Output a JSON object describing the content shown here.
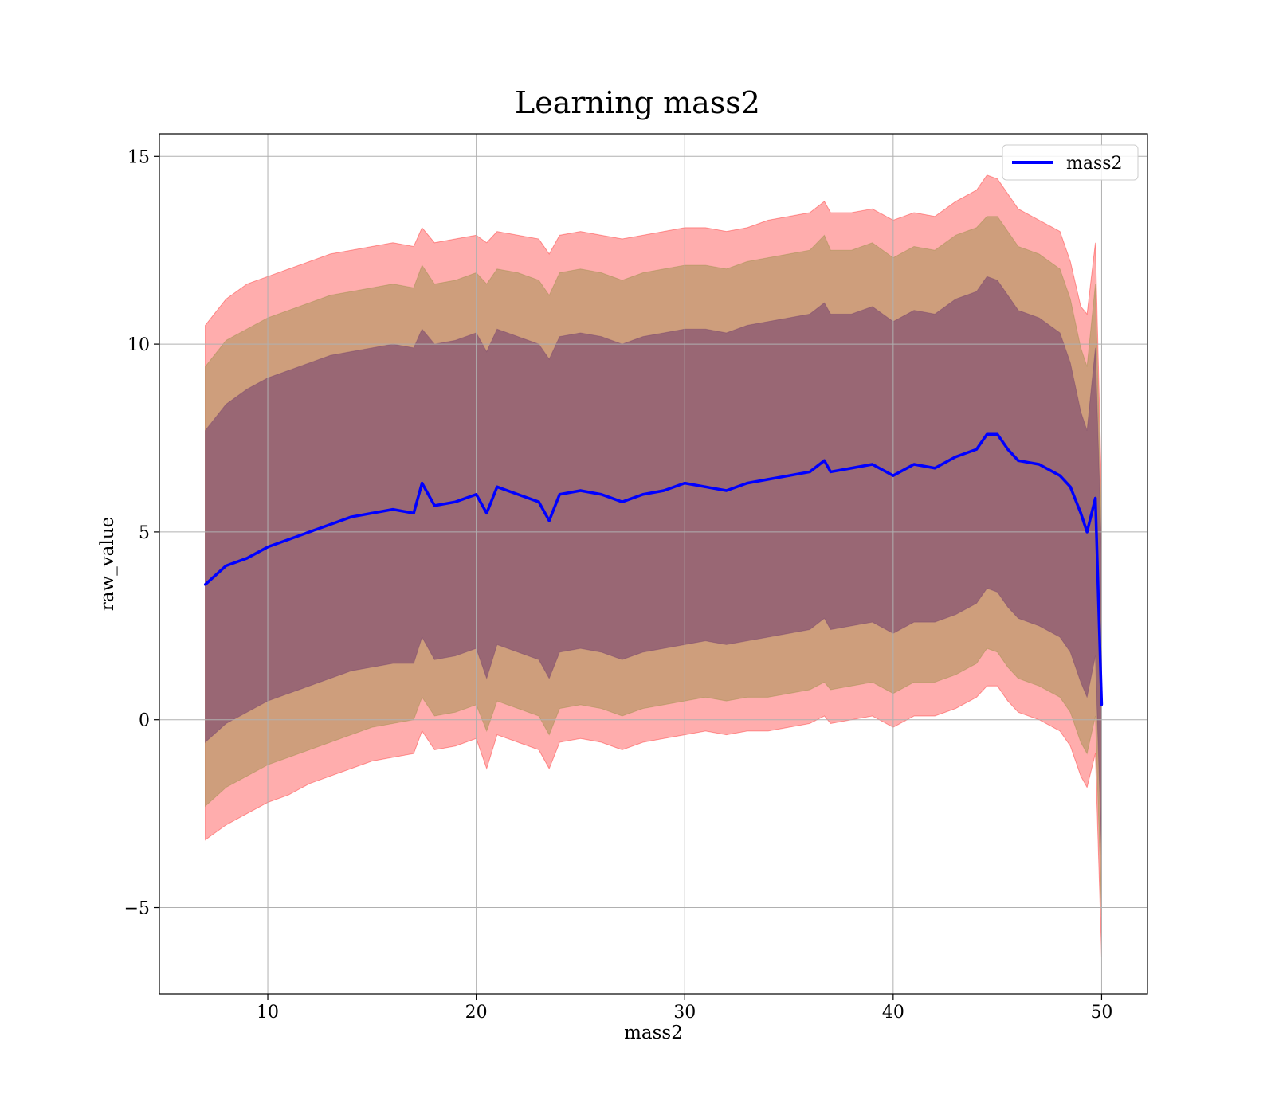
{
  "chart_data": {
    "type": "line",
    "title": "Learning mass2",
    "xlabel": "mass2",
    "ylabel": "raw_value",
    "xlim": [
      4.8,
      52.2
    ],
    "ylim": [
      -7.3,
      15.6
    ],
    "xticks": [
      10,
      20,
      30,
      40,
      50
    ],
    "yticks": [
      -5,
      0,
      5,
      10,
      15
    ],
    "xtick_labels": [
      "10",
      "20",
      "30",
      "40",
      "50"
    ],
    "ytick_labels": [
      "−5",
      "0",
      "5",
      "10",
      "15"
    ],
    "grid": true,
    "legend": {
      "position": "top-right",
      "entries": [
        "mass2"
      ]
    },
    "colors": {
      "mean_line": "#0000ff",
      "band_outer": "#ff0000",
      "band_middle": "#8b8b3a",
      "band_inner": "#6e3a6e",
      "grid": "#b0b0b0"
    },
    "series": [
      {
        "name": "mass2",
        "x": [
          7,
          8,
          9,
          10,
          11,
          12,
          13,
          14,
          15,
          16,
          17,
          17.4,
          18,
          19,
          20,
          20.5,
          21,
          22,
          23,
          23.5,
          24,
          25,
          26,
          27,
          28,
          29,
          30,
          31,
          32,
          33,
          34,
          35,
          36,
          36.7,
          37,
          38,
          39,
          40,
          41,
          42,
          43,
          44,
          44.5,
          45,
          45.5,
          46,
          47,
          48,
          48.5,
          49,
          49.3,
          49.7,
          50
        ],
        "y": [
          3.6,
          4.1,
          4.3,
          4.6,
          4.8,
          5.0,
          5.2,
          5.4,
          5.5,
          5.6,
          5.5,
          6.3,
          5.7,
          5.8,
          6.0,
          5.5,
          6.2,
          6.0,
          5.8,
          5.3,
          6.0,
          6.1,
          6.0,
          5.8,
          6.0,
          6.1,
          6.3,
          6.2,
          6.1,
          6.3,
          6.4,
          6.5,
          6.6,
          6.9,
          6.6,
          6.7,
          6.8,
          6.5,
          6.8,
          6.7,
          7.0,
          7.2,
          7.6,
          7.6,
          7.2,
          6.9,
          6.8,
          6.5,
          6.2,
          5.5,
          5.0,
          5.9,
          0.4
        ]
      }
    ],
    "bands": [
      {
        "level": "outer",
        "upper": [
          10.5,
          11.2,
          11.6,
          11.8,
          12.0,
          12.2,
          12.4,
          12.5,
          12.6,
          12.7,
          12.6,
          13.1,
          12.7,
          12.8,
          12.9,
          12.7,
          13.0,
          12.9,
          12.8,
          12.4,
          12.9,
          13.0,
          12.9,
          12.8,
          12.9,
          13.0,
          13.1,
          13.1,
          13.0,
          13.1,
          13.3,
          13.4,
          13.5,
          13.8,
          13.5,
          13.5,
          13.6,
          13.3,
          13.5,
          13.4,
          13.8,
          14.1,
          14.5,
          14.4,
          14.0,
          13.6,
          13.3,
          13.0,
          12.2,
          11.0,
          10.8,
          12.7,
          6.0
        ],
        "lower": [
          -3.2,
          -2.8,
          -2.5,
          -2.2,
          -2.0,
          -1.7,
          -1.5,
          -1.3,
          -1.1,
          -1.0,
          -0.9,
          -0.3,
          -0.8,
          -0.7,
          -0.5,
          -1.3,
          -0.4,
          -0.6,
          -0.8,
          -1.3,
          -0.6,
          -0.5,
          -0.6,
          -0.8,
          -0.6,
          -0.5,
          -0.4,
          -0.3,
          -0.4,
          -0.3,
          -0.3,
          -0.2,
          -0.1,
          0.1,
          -0.1,
          0.0,
          0.1,
          -0.2,
          0.1,
          0.1,
          0.3,
          0.6,
          0.9,
          0.9,
          0.5,
          0.2,
          0.0,
          -0.3,
          -0.7,
          -1.5,
          -1.8,
          -0.9,
          -6.3
        ]
      },
      {
        "level": "middle",
        "upper": [
          9.4,
          10.1,
          10.4,
          10.7,
          10.9,
          11.1,
          11.3,
          11.4,
          11.5,
          11.6,
          11.5,
          12.1,
          11.6,
          11.7,
          11.9,
          11.6,
          12.0,
          11.9,
          11.7,
          11.3,
          11.9,
          12.0,
          11.9,
          11.7,
          11.9,
          12.0,
          12.1,
          12.1,
          12.0,
          12.2,
          12.3,
          12.4,
          12.5,
          12.9,
          12.5,
          12.5,
          12.7,
          12.3,
          12.6,
          12.5,
          12.9,
          13.1,
          13.4,
          13.4,
          13.0,
          12.6,
          12.4,
          12.0,
          11.2,
          9.9,
          9.4,
          11.6,
          5.2
        ],
        "lower": [
          -2.3,
          -1.8,
          -1.5,
          -1.2,
          -1.0,
          -0.8,
          -0.6,
          -0.4,
          -0.2,
          -0.1,
          0.0,
          0.6,
          0.1,
          0.2,
          0.4,
          -0.3,
          0.5,
          0.3,
          0.1,
          -0.4,
          0.3,
          0.4,
          0.3,
          0.1,
          0.3,
          0.4,
          0.5,
          0.6,
          0.5,
          0.6,
          0.6,
          0.7,
          0.8,
          1.0,
          0.8,
          0.9,
          1.0,
          0.7,
          1.0,
          1.0,
          1.2,
          1.5,
          1.9,
          1.8,
          1.4,
          1.1,
          0.9,
          0.6,
          0.2,
          -0.6,
          -0.9,
          0.1,
          -5.2
        ]
      },
      {
        "level": "inner",
        "upper": [
          7.7,
          8.4,
          8.8,
          9.1,
          9.3,
          9.5,
          9.7,
          9.8,
          9.9,
          10.0,
          9.9,
          10.4,
          10.0,
          10.1,
          10.3,
          9.8,
          10.4,
          10.2,
          10.0,
          9.6,
          10.2,
          10.3,
          10.2,
          10.0,
          10.2,
          10.3,
          10.4,
          10.4,
          10.3,
          10.5,
          10.6,
          10.7,
          10.8,
          11.1,
          10.8,
          10.8,
          11.0,
          10.6,
          10.9,
          10.8,
          11.2,
          11.4,
          11.8,
          11.7,
          11.3,
          10.9,
          10.7,
          10.3,
          9.5,
          8.2,
          7.7,
          9.9,
          4.4
        ],
        "lower": [
          -0.6,
          -0.1,
          0.2,
          0.5,
          0.7,
          0.9,
          1.1,
          1.3,
          1.4,
          1.5,
          1.5,
          2.2,
          1.6,
          1.7,
          1.9,
          1.1,
          2.0,
          1.8,
          1.6,
          1.1,
          1.8,
          1.9,
          1.8,
          1.6,
          1.8,
          1.9,
          2.0,
          2.1,
          2.0,
          2.1,
          2.2,
          2.3,
          2.4,
          2.7,
          2.4,
          2.5,
          2.6,
          2.3,
          2.6,
          2.6,
          2.8,
          3.1,
          3.5,
          3.4,
          3.0,
          2.7,
          2.5,
          2.2,
          1.8,
          1.0,
          0.6,
          1.7,
          -3.6
        ]
      }
    ]
  }
}
